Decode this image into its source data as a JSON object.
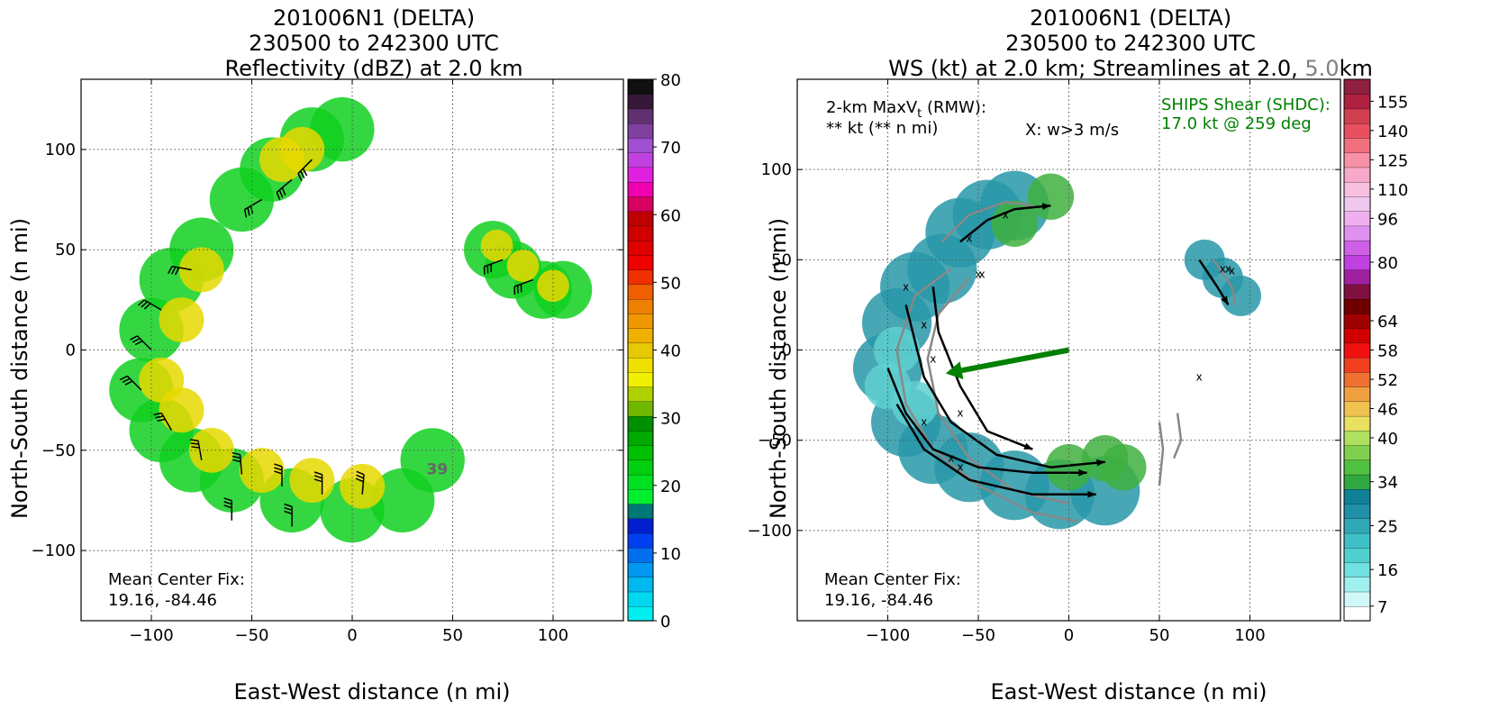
{
  "chart_data": [
    {
      "type": "heatmap",
      "title_lines": [
        "201006N1 (DELTA)",
        "230500 to 242300 UTC",
        "Reflectivity (dBZ) at 2.0 km"
      ],
      "xlabel": "East-West distance (n mi)",
      "ylabel": "North-South distance (n mi)",
      "xlim": [
        -135,
        135
      ],
      "ylim": [
        -135,
        135
      ],
      "xticks": [
        -100,
        -50,
        0,
        50,
        100
      ],
      "yticks": [
        -100,
        -50,
        0,
        50,
        100
      ],
      "grid": true,
      "colorbar": {
        "ticks": [
          0,
          10,
          20,
          30,
          40,
          50,
          60,
          70,
          80
        ],
        "colors": [
          "#00f0f0",
          "#00d8f0",
          "#00b8f0",
          "#0098f0",
          "#0070f0",
          "#0040f0",
          "#0020d0",
          "#007878",
          "#00f030",
          "#00e020",
          "#00d010",
          "#00c000",
          "#00a800",
          "#009000",
          "#70b800",
          "#b0d000",
          "#f0f000",
          "#f0e000",
          "#e8c800",
          "#f0b000",
          "#f09800",
          "#f08000",
          "#f06000",
          "#f03000",
          "#f00000",
          "#e00000",
          "#d00000",
          "#c00000",
          "#d80060",
          "#f000b0",
          "#e020e0",
          "#c040e0",
          "#a050d0",
          "#8040a0",
          "#603070",
          "#381838",
          "#101010"
        ]
      },
      "annotation": "Mean Center Fix:\n19.16, -84.46",
      "annotation_lines": [
        "Mean Center Fix:",
        "19.16, -84.46"
      ],
      "extra_label": "39",
      "extra_label_pos": [
        37,
        -62
      ],
      "fields": [
        {
          "name": "outer-band",
          "color": "#10d020",
          "points": [
            [
              -105,
              -20
            ],
            [
              -100,
              10
            ],
            [
              -90,
              35
            ],
            [
              -75,
              50
            ],
            [
              -55,
              75
            ],
            [
              -40,
              90
            ],
            [
              -20,
              105
            ],
            [
              -5,
              110
            ],
            [
              -80,
              -55
            ],
            [
              -60,
              -65
            ],
            [
              -30,
              -75
            ],
            [
              0,
              -80
            ],
            [
              25,
              -75
            ],
            [
              40,
              -55
            ],
            [
              -95,
              -40
            ]
          ],
          "radius": 10
        },
        {
          "name": "inner-band",
          "color": "#e8d800",
          "points": [
            [
              -95,
              -15
            ],
            [
              -85,
              15
            ],
            [
              -75,
              40
            ],
            [
              -70,
              -50
            ],
            [
              -45,
              -60
            ],
            [
              -20,
              -65
            ],
            [
              5,
              -68
            ],
            [
              -35,
              95
            ],
            [
              -25,
              100
            ],
            [
              -85,
              -30
            ]
          ],
          "radius": 7
        },
        {
          "name": "ne-band",
          "color": "#10d020",
          "points": [
            [
              70,
              50
            ],
            [
              80,
              40
            ],
            [
              95,
              30
            ],
            [
              105,
              30
            ]
          ],
          "radius": 9
        },
        {
          "name": "ne-band-core",
          "color": "#e8d800",
          "points": [
            [
              72,
              52
            ],
            [
              85,
              42
            ],
            [
              100,
              32
            ]
          ],
          "radius": 5
        }
      ],
      "barbs": [
        {
          "x": -105,
          "y": -20,
          "dir": 135
        },
        {
          "x": -100,
          "y": 0,
          "dir": 135
        },
        {
          "x": -95,
          "y": 20,
          "dir": 150
        },
        {
          "x": -90,
          "y": -40,
          "dir": 120
        },
        {
          "x": -75,
          "y": -55,
          "dir": 100
        },
        {
          "x": -55,
          "y": -62,
          "dir": 95
        },
        {
          "x": -35,
          "y": -68,
          "dir": 90
        },
        {
          "x": -15,
          "y": -72,
          "dir": 90
        },
        {
          "x": 5,
          "y": -72,
          "dir": 85
        },
        {
          "x": -60,
          "y": -85,
          "dir": 90
        },
        {
          "x": -30,
          "y": -88,
          "dir": 90
        },
        {
          "x": -45,
          "y": 75,
          "dir": 210
        },
        {
          "x": -30,
          "y": 85,
          "dir": 220
        },
        {
          "x": -20,
          "y": 95,
          "dir": 225
        },
        {
          "x": -80,
          "y": 40,
          "dir": 170
        },
        {
          "x": 75,
          "y": 45,
          "dir": 200
        },
        {
          "x": 90,
          "y": 35,
          "dir": 200
        }
      ]
    },
    {
      "type": "heatmap",
      "title_lines": [
        "201006N1 (DELTA)",
        "230500 to 242300 UTC",
        "WS (kt) at 2.0 km; Streamlines at 2.0, ",
        "5.0",
        "km"
      ],
      "xlabel": "East-West distance (n mi)",
      "ylabel": "North-South distance (n mi)",
      "xlim": [
        -150,
        150
      ],
      "ylim": [
        -150,
        150
      ],
      "xticks": [
        -100,
        -50,
        0,
        50,
        100
      ],
      "yticks": [
        -100,
        -50,
        0,
        50,
        100
      ],
      "grid": true,
      "colorbar": {
        "ticks": [
          7,
          16,
          25,
          34,
          40,
          46,
          52,
          58,
          64,
          80,
          96,
          110,
          125,
          140,
          155
        ],
        "colors": [
          "#ffffff",
          "#d0f8f8",
          "#a0f0f0",
          "#70e0e0",
          "#50d0d0",
          "#40c0c8",
          "#30a8b8",
          "#2090a8",
          "#108098",
          "#30a840",
          "#50c040",
          "#80d050",
          "#b0e060",
          "#e8e060",
          "#f0c050",
          "#f0a040",
          "#f07030",
          "#f04020",
          "#f01010",
          "#d00000",
          "#a00000",
          "#700000",
          "#801040",
          "#a020a0",
          "#c040e0",
          "#d060e8",
          "#e090f0",
          "#f0b0f0",
          "#f0c8f0",
          "#f8c0e0",
          "#f8a8c8",
          "#f890a8",
          "#f07080",
          "#e85060",
          "#d04050",
          "#b02040",
          "#902040"
        ]
      },
      "maxvt_label": "2-km MaxV",
      "maxvt_sub": "t",
      "maxvt_rmw": " (RMW):",
      "maxvt_value": "** kt (** n mi)",
      "w_label": "X: w>3 m/s",
      "ships_title": "SHIPS Shear (SHDC):",
      "ships_value": "17.0 kt @ 259 deg",
      "shear_vector": {
        "from": [
          0,
          0
        ],
        "to": [
          -68,
          -13
        ]
      },
      "annotation": "Mean Center Fix:\n19.16, -84.46",
      "annotation_lines": [
        "Mean Center Fix:",
        "19.16, -84.46"
      ],
      "fields": [
        {
          "name": "main-band",
          "color": "#2898a8",
          "points": [
            [
              -100,
              -10
            ],
            [
              -95,
              15
            ],
            [
              -85,
              35
            ],
            [
              -70,
              45
            ],
            [
              -90,
              -40
            ],
            [
              -75,
              -55
            ],
            [
              -55,
              -65
            ],
            [
              -30,
              -75
            ],
            [
              -5,
              -80
            ],
            [
              20,
              -78
            ],
            [
              -60,
              65
            ],
            [
              -45,
              75
            ],
            [
              -30,
              80
            ]
          ],
          "radius": 12
        },
        {
          "name": "green-patches",
          "color": "#40b040",
          "points": [
            [
              -30,
              70
            ],
            [
              -10,
              85
            ],
            [
              0,
              -65
            ],
            [
              20,
              -60
            ],
            [
              30,
              -65
            ]
          ],
          "radius": 8
        },
        {
          "name": "ne-band",
          "color": "#2898a8",
          "points": [
            [
              75,
              50
            ],
            [
              85,
              40
            ],
            [
              95,
              30
            ]
          ],
          "radius": 7
        },
        {
          "name": "light-cyan",
          "color": "#60d0d0",
          "points": [
            [
              -100,
              -20
            ],
            [
              -95,
              0
            ],
            [
              -85,
              -30
            ]
          ],
          "radius": 8
        }
      ],
      "streamlines_black": [
        [
          [
            -100,
            -10
          ],
          [
            -90,
            -35
          ],
          [
            -75,
            -55
          ],
          [
            -50,
            -65
          ],
          [
            -20,
            -68
          ],
          [
            10,
            -68
          ]
        ],
        [
          [
            -90,
            25
          ],
          [
            -80,
            -15
          ],
          [
            -65,
            -40
          ],
          [
            -40,
            -58
          ],
          [
            -10,
            -65
          ],
          [
            20,
            -62
          ]
        ],
        [
          [
            -75,
            35
          ],
          [
            -72,
            10
          ],
          [
            -60,
            -20
          ],
          [
            -45,
            -45
          ],
          [
            -20,
            -55
          ]
        ],
        [
          [
            -95,
            -30
          ],
          [
            -80,
            -55
          ],
          [
            -55,
            -72
          ],
          [
            -20,
            -80
          ],
          [
            15,
            -80
          ]
        ],
        [
          [
            -60,
            60
          ],
          [
            -45,
            72
          ],
          [
            -30,
            78
          ],
          [
            -10,
            80
          ]
        ],
        [
          [
            72,
            50
          ],
          [
            82,
            35
          ],
          [
            88,
            25
          ]
        ]
      ],
      "streamlines_gray": [
        [
          [
            -65,
            45
          ],
          [
            -85,
            30
          ],
          [
            -95,
            0
          ],
          [
            -90,
            -30
          ],
          [
            -75,
            -55
          ],
          [
            -50,
            -75
          ],
          [
            -20,
            -90
          ],
          [
            5,
            -95
          ]
        ],
        [
          [
            -55,
            40
          ],
          [
            -72,
            20
          ],
          [
            -78,
            -5
          ],
          [
            -72,
            -35
          ],
          [
            -55,
            -60
          ],
          [
            -30,
            -78
          ],
          [
            0,
            -85
          ]
        ],
        [
          [
            -70,
            60
          ],
          [
            -55,
            75
          ],
          [
            -35,
            82
          ],
          [
            -20,
            80
          ]
        ],
        [
          [
            50,
            -40
          ],
          [
            52,
            -55
          ],
          [
            50,
            -75
          ]
        ],
        [
          [
            60,
            -35
          ],
          [
            62,
            -50
          ],
          [
            58,
            -60
          ]
        ],
        [
          [
            80,
            50
          ],
          [
            90,
            35
          ],
          [
            92,
            25
          ]
        ]
      ],
      "w_markers": [
        [
          -90,
          35
        ],
        [
          -80,
          14
        ],
        [
          -75,
          -5
        ],
        [
          -60,
          -35
        ],
        [
          -80,
          -40
        ],
        [
          -65,
          -60
        ],
        [
          -60,
          -65
        ],
        [
          -55,
          62
        ],
        [
          -50,
          42
        ],
        [
          -48,
          42
        ],
        [
          72,
          -15
        ],
        [
          85,
          45
        ],
        [
          88,
          45
        ],
        [
          90,
          44
        ],
        [
          -35,
          75
        ]
      ]
    }
  ]
}
